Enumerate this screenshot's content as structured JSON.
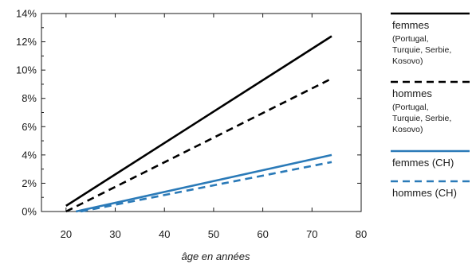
{
  "chart_data": {
    "type": "line",
    "xlabel": "âge en années",
    "ylabel": "",
    "xlim": [
      15,
      80
    ],
    "ylim": [
      0,
      14
    ],
    "x_ticks": [
      20,
      30,
      40,
      50,
      60,
      70,
      80
    ],
    "y_ticks": [
      0,
      2,
      4,
      6,
      8,
      10,
      12,
      14
    ],
    "y_tick_suffix": "%",
    "grid": false,
    "legend_position": "right",
    "series": [
      {
        "name": "femmes",
        "detail": [
          "(Portugal,",
          "Turquie, Serbie,",
          "Kosovo)"
        ],
        "color": "#000000",
        "dash": "solid",
        "points": [
          [
            20,
            0.4
          ],
          [
            74,
            12.4
          ]
        ]
      },
      {
        "name": "hommes",
        "detail": [
          "(Portugal,",
          "Turquie, Serbie,",
          "Kosovo)"
        ],
        "color": "#000000",
        "dash": "dashed",
        "points": [
          [
            20,
            0.0
          ],
          [
            74,
            9.4
          ]
        ]
      },
      {
        "name": "femmes (CH)",
        "detail": [],
        "color": "#2a7ab8",
        "dash": "solid",
        "points": [
          [
            22,
            0.0
          ],
          [
            74,
            4.0
          ]
        ]
      },
      {
        "name": "hommes (CH)",
        "detail": [],
        "color": "#2a7ab8",
        "dash": "dashed",
        "points": [
          [
            23,
            0.0
          ],
          [
            74,
            3.5
          ]
        ]
      }
    ]
  }
}
